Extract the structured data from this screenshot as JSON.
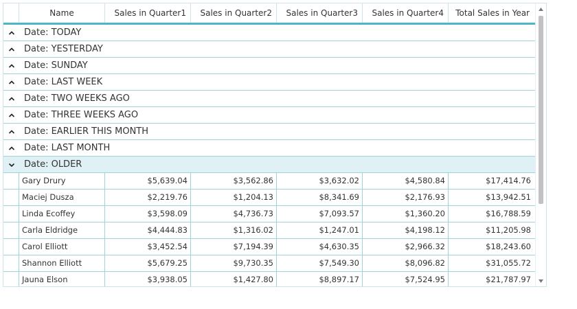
{
  "grid": {
    "columns": [
      {
        "label": "Name"
      },
      {
        "label": "Sales in Quarter1"
      },
      {
        "label": "Sales in Quarter2"
      },
      {
        "label": "Sales in Quarter3"
      },
      {
        "label": "Sales in Quarter4"
      },
      {
        "label": "Total Sales in Year"
      }
    ],
    "groups": [
      {
        "label": "Date: TODAY",
        "expanded": false
      },
      {
        "label": "Date: YESTERDAY",
        "expanded": false
      },
      {
        "label": "Date: SUNDAY",
        "expanded": false
      },
      {
        "label": "Date: LAST WEEK",
        "expanded": false
      },
      {
        "label": "Date: TWO WEEKS AGO",
        "expanded": false
      },
      {
        "label": "Date: THREE WEEKS AGO",
        "expanded": false
      },
      {
        "label": "Date: EARLIER THIS MONTH",
        "expanded": false
      },
      {
        "label": "Date: LAST MONTH",
        "expanded": false
      },
      {
        "label": "Date: OLDER",
        "expanded": true
      }
    ],
    "rows": [
      {
        "name": "Gary Drury",
        "q1": "$5,639.04",
        "q2": "$3,562.86",
        "q3": "$3,632.02",
        "q4": "$4,580.84",
        "total": "$17,414.76"
      },
      {
        "name": "Maciej Dusza",
        "q1": "$2,219.76",
        "q2": "$1,204.13",
        "q3": "$8,341.69",
        "q4": "$2,176.93",
        "total": "$13,942.51"
      },
      {
        "name": "Linda Ecoffey",
        "q1": "$3,598.09",
        "q2": "$4,736.73",
        "q3": "$7,093.57",
        "q4": "$1,360.20",
        "total": "$16,788.59"
      },
      {
        "name": "Carla Eldridge",
        "q1": "$4,444.83",
        "q2": "$1,316.02",
        "q3": "$1,247.01",
        "q4": "$4,198.12",
        "total": "$11,205.98"
      },
      {
        "name": "Carol Elliott",
        "q1": "$3,452.54",
        "q2": "$7,194.39",
        "q3": "$4,630.35",
        "q4": "$2,966.32",
        "total": "$18,243.60"
      },
      {
        "name": "Shannon Elliott",
        "q1": "$5,679.25",
        "q2": "$9,730.35",
        "q3": "$7,549.30",
        "q4": "$8,096.82",
        "total": "$31,055.72"
      },
      {
        "name": "Jauna Elson",
        "q1": "$3,938.05",
        "q2": "$1,427.80",
        "q3": "$8,897.17",
        "q4": "$7,524.95",
        "total": "$21,787.97"
      }
    ]
  },
  "icons": {
    "collapsed_group": "chevron-up-icon",
    "expanded_group": "chevron-down-icon",
    "scroll_up": "scroll-up-arrow-icon",
    "scroll_down": "scroll-down-arrow-icon"
  }
}
